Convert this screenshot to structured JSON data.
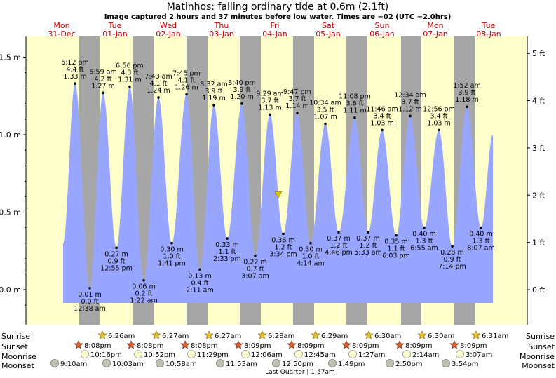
{
  "header": {
    "title": "Matinhos: falling  ordinary tide at 0.6m (2.1ft)",
    "subtitle": "Image captured 2 hours and 37 minutes before low water. Times are −02 (UTC −2.0hrs)"
  },
  "colors": {
    "day_band": "#ffffcc",
    "night_band": "#a6a6a6",
    "tide_fill": "#99a6ff",
    "day_label": "#cc0000",
    "marker": "#e6c800"
  },
  "chart_data": {
    "type": "area",
    "title": "Matinhos: falling  ordinary tide at 0.6m (2.1ft)",
    "ylabel_left_unit": "m",
    "ylabel_right_unit": "ft",
    "ylim": [
      -0.2,
      1.6
    ],
    "yticks_m": [
      "0.0 m",
      "0.5 m",
      "1.0 m",
      "1.5 m"
    ],
    "yticks_m_values": [
      0.0,
      0.5,
      1.0,
      1.5
    ],
    "yticks_ft": [
      "0 ft",
      "1 ft",
      "2 ft",
      "3 ft",
      "4 ft",
      "5 ft"
    ],
    "yticks_ft_values": [
      0,
      1,
      2,
      3,
      4,
      5
    ],
    "grid": false,
    "days": [
      {
        "dow": "Mon",
        "date": "31-Dec"
      },
      {
        "dow": "Tue",
        "date": "01-Jan"
      },
      {
        "dow": "Wed",
        "date": "02-Jan"
      },
      {
        "dow": "Thu",
        "date": "03-Jan"
      },
      {
        "dow": "Fri",
        "date": "04-Jan"
      },
      {
        "dow": "Sat",
        "date": "05-Jan"
      },
      {
        "dow": "Sun",
        "date": "06-Jan"
      },
      {
        "dow": "Mon",
        "date": "07-Jan"
      },
      {
        "dow": "Tue",
        "date": "08-Jan"
      }
    ],
    "tides": [
      {
        "type": "high",
        "time": "6:12 pm",
        "ft": "4.4 ft",
        "m": "1.33 m",
        "value": 1.33
      },
      {
        "type": "low",
        "time": "12:38 am",
        "ft": "0.0 ft",
        "m": "0.01 m",
        "value": 0.01
      },
      {
        "type": "high",
        "time": "6:59 am",
        "ft": "4.2 ft",
        "m": "1.27 m",
        "value": 1.27
      },
      {
        "type": "low",
        "time": "12:55 pm",
        "ft": "0.9 ft",
        "m": "0.27 m",
        "value": 0.27
      },
      {
        "type": "high",
        "time": "6:56 pm",
        "ft": "4.3 ft",
        "m": "1.31 m",
        "value": 1.31
      },
      {
        "type": "low",
        "time": "1:22 am",
        "ft": "0.2 ft",
        "m": "0.06 m",
        "value": 0.06
      },
      {
        "type": "high",
        "time": "7:43 am",
        "ft": "4.1 ft",
        "m": "1.24 m",
        "value": 1.24
      },
      {
        "type": "low",
        "time": "1:41 pm",
        "ft": "1.0 ft",
        "m": "0.30 m",
        "value": 0.3
      },
      {
        "type": "high",
        "time": "7:45 pm",
        "ft": "4.1 ft",
        "m": "1.26 m",
        "value": 1.26
      },
      {
        "type": "low",
        "time": "2:11 am",
        "ft": "0.4 ft",
        "m": "0.13 m",
        "value": 0.13
      },
      {
        "type": "high",
        "time": "8:32 am",
        "ft": "3.9 ft",
        "m": "1.19 m",
        "value": 1.19
      },
      {
        "type": "low",
        "time": "2:33 pm",
        "ft": "1.1 ft",
        "m": "0.33 m",
        "value": 0.33
      },
      {
        "type": "high",
        "time": "8:40 pm",
        "ft": "3.9 ft",
        "m": "1.20 m",
        "value": 1.2
      },
      {
        "type": "low",
        "time": "3:07 am",
        "ft": "0.7 ft",
        "m": "0.22 m",
        "value": 0.22
      },
      {
        "type": "high",
        "time": "9:29 am",
        "ft": "3.7 ft",
        "m": "1.13 m",
        "value": 1.13
      },
      {
        "type": "low",
        "time": "3:34 pm",
        "ft": "1.2 ft",
        "m": "0.36 m",
        "value": 0.36
      },
      {
        "type": "high",
        "time": "9:47 pm",
        "ft": "3.7 ft",
        "m": "1.14 m",
        "value": 1.14
      },
      {
        "type": "low",
        "time": "4:14 am",
        "ft": "1.0 ft",
        "m": "0.30 m",
        "value": 0.3
      },
      {
        "type": "high",
        "time": "10:34 am",
        "ft": "3.5 ft",
        "m": "1.07 m",
        "value": 1.07
      },
      {
        "type": "low",
        "time": "4:46 pm",
        "ft": "1.2 ft",
        "m": "0.37 m",
        "value": 0.37
      },
      {
        "type": "high",
        "time": "11:08 pm",
        "ft": "3.6 ft",
        "m": "1.11 m",
        "value": 1.11
      },
      {
        "type": "low",
        "time": "5:33 am",
        "ft": "1.2 ft",
        "m": "0.37 m",
        "value": 0.37
      },
      {
        "type": "high",
        "time": "11:46 am",
        "ft": "3.4 ft",
        "m": "1.03 m",
        "value": 1.03
      },
      {
        "type": "low",
        "time": "6:03 pm",
        "ft": "1.1 ft",
        "m": "0.35 m",
        "value": 0.35
      },
      {
        "type": "high",
        "time": "12:34 am",
        "ft": "3.7 ft",
        "m": "1.12 m",
        "value": 1.12
      },
      {
        "type": "low",
        "time": "6:55 am",
        "ft": "1.3 ft",
        "m": "0.40 m",
        "value": 0.4
      },
      {
        "type": "high",
        "time": "12:56 pm",
        "ft": "3.4 ft",
        "m": "1.03 m",
        "value": 1.03
      },
      {
        "type": "low",
        "time": "7:14 pm",
        "ft": "0.9 ft",
        "m": "0.28 m",
        "value": 0.28
      },
      {
        "type": "high",
        "time": "1:52 am",
        "ft": "3.9 ft",
        "m": "1.18 m",
        "value": 1.18
      },
      {
        "type": "low",
        "time": "8:07 am",
        "ft": "1.3 ft",
        "m": "0.40 m",
        "value": 0.4
      }
    ],
    "current": {
      "value": 0.6
    }
  },
  "astro": {
    "row_labels": {
      "sunrise": "Sunrise",
      "sunset": "Sunset",
      "moonrise": "Moonrise",
      "moonset": "Moonset"
    },
    "sunrise": [
      "6:26am",
      "6:27am",
      "6:27am",
      "6:28am",
      "6:29am",
      "6:30am",
      "6:30am",
      "6:31am"
    ],
    "sunset": [
      "8:08pm",
      "8:08pm",
      "8:08pm",
      "8:09pm",
      "8:09pm",
      "8:09pm",
      "8:09pm",
      "8:09pm"
    ],
    "moonrise": [
      "10:16pm",
      "10:52pm",
      "11:29pm",
      "12:06am",
      "12:45am",
      "1:27am",
      "2:14am",
      "3:07am"
    ],
    "moonset": [
      "9:10am",
      "10:03am",
      "10:58am",
      "11:53am",
      "12:50pm",
      "1:49pm",
      "2:50pm",
      "3:54pm"
    ],
    "moon_phase_note": "Last Quarter | 1:57am"
  }
}
